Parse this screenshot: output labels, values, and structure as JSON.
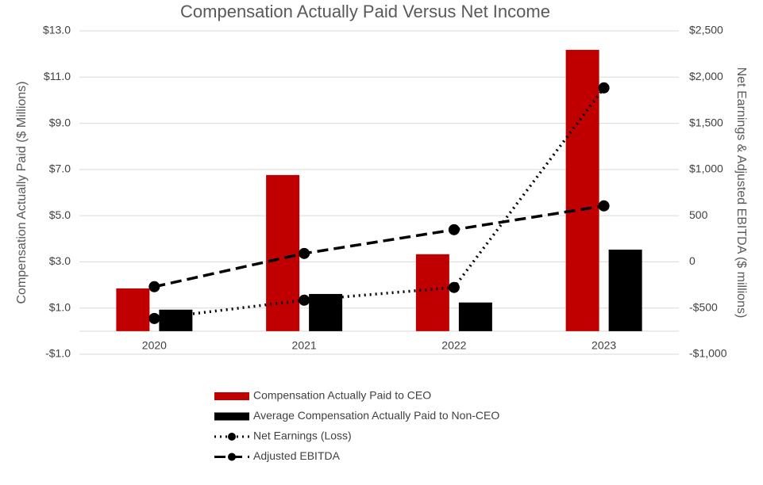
{
  "chart_data": {
    "type": "bar-line",
    "title": "Compensation Actually Paid Versus Net Income",
    "y_label": "Compensation Actually Paid ($ Millions)",
    "y2_label": "Net Earnings & Adjusted EBITDA ($ millions)",
    "categories": [
      "2020",
      "2021",
      "2022",
      "2023"
    ],
    "series": [
      {
        "name": "Compensation Actually Paid to CEO",
        "type": "bar",
        "color": "#c00000",
        "values": [
          1.85,
          6.76,
          3.33,
          12.18
        ]
      },
      {
        "name": "Average Compensation Actually Paid to Non-CEO",
        "type": "bar",
        "color": "#000000",
        "values": [
          0.93,
          1.61,
          1.24,
          3.53
        ]
      },
      {
        "name": "Net Earnings (Loss)",
        "type": "line",
        "line_style": "dotted",
        "axis": "y2",
        "color": "#000000",
        "values": [
          -613,
          -415,
          -277,
          1883
        ]
      },
      {
        "name": "Adjusted EBITDA",
        "type": "line",
        "line_style": "dashed",
        "axis": "y2",
        "color": "#000000",
        "values": [
          -269,
          91,
          348,
          606
        ]
      }
    ],
    "ylim": [
      -1,
      13
    ],
    "yticks": [
      {
        "value": -1,
        "label": "-$1.0"
      },
      {
        "value": 1,
        "label": "$1.0"
      },
      {
        "value": 3,
        "label": "$3.0"
      },
      {
        "value": 5,
        "label": "$5.0"
      },
      {
        "value": 7,
        "label": "$7.0"
      },
      {
        "value": 9,
        "label": "$9.0"
      },
      {
        "value": 11,
        "label": "$11.0"
      },
      {
        "value": 13,
        "label": "$13.0"
      }
    ],
    "y2lim": [
      -1000,
      2500
    ],
    "y2ticks": [
      {
        "value": -1000,
        "label": "-$1,000"
      },
      {
        "value": -500,
        "label": "-$500"
      },
      0,
      500,
      {
        "value": 1000,
        "label": "$1,000"
      },
      {
        "value": 1500,
        "label": "$1,500"
      },
      {
        "value": 2000,
        "label": "$2,000"
      },
      {
        "value": 2500,
        "label": "$2,500"
      }
    ],
    "grid": true,
    "legend": "bottom"
  }
}
